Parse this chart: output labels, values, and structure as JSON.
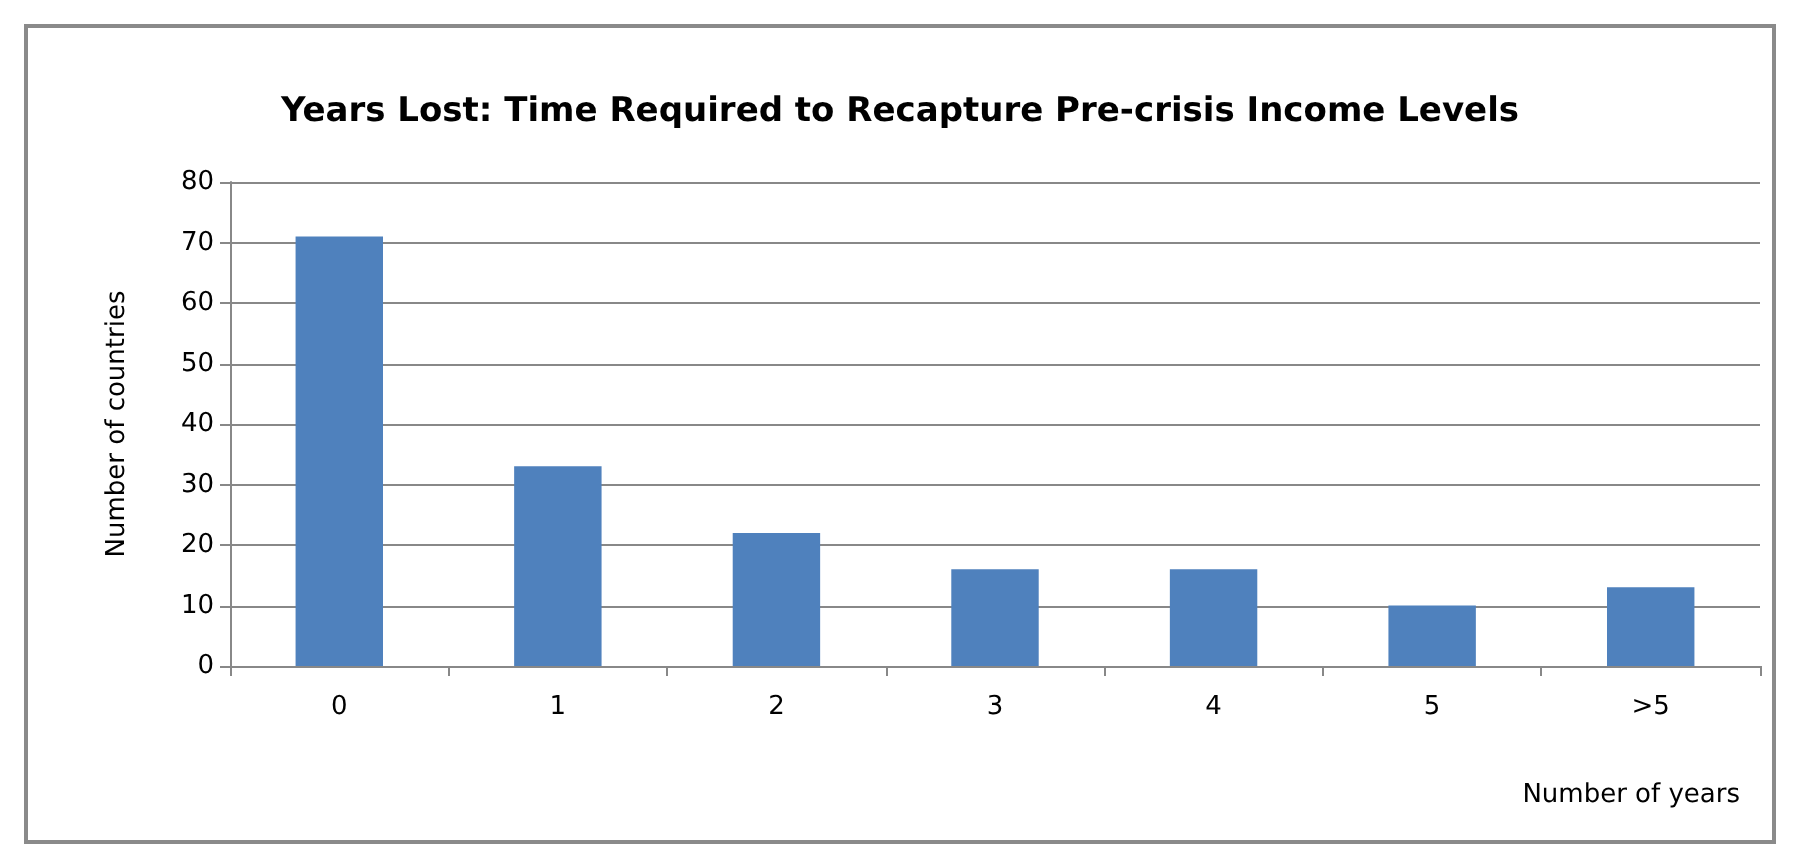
{
  "chart_data": {
    "type": "bar",
    "title": "Years Lost: Time Required to Recapture Pre-crisis Income Levels",
    "xlabel": "Number of years",
    "ylabel": "Number of countries",
    "categories": [
      "0",
      "1",
      "2",
      "3",
      "4",
      "5",
      ">5"
    ],
    "values": [
      71,
      33,
      22,
      16,
      16,
      10,
      13
    ],
    "color": "#4f81bd",
    "ylim": [
      0,
      80
    ],
    "yticks": [
      0,
      10,
      20,
      30,
      40,
      50,
      60,
      70,
      80
    ],
    "grid": "y"
  }
}
